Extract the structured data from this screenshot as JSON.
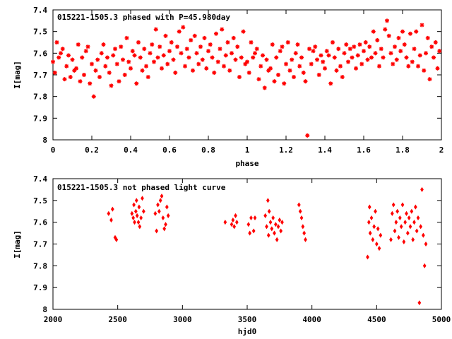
{
  "chart_data": [
    {
      "type": "scatter",
      "title": "015221-1505.3 phased with P=45.980day",
      "xlabel": "phase",
      "ylabel": "I[mag]",
      "xlim": [
        0,
        2
      ],
      "ylim": [
        7.4,
        8.0
      ],
      "y_inverted": true,
      "marker": "star",
      "color": "#ff0000",
      "grid": false,
      "xticks": [
        "0",
        "0.2",
        "0.4",
        "0.6",
        "0.8",
        "1",
        "1.2",
        "1.4",
        "1.6",
        "1.8",
        "2"
      ],
      "yticks": [
        "7.4",
        "7.5",
        "7.6",
        "7.7",
        "7.8",
        "7.9",
        "8"
      ],
      "points": [
        [
          0.0,
          7.64
        ],
        [
          0.01,
          7.69
        ],
        [
          0.02,
          7.55
        ],
        [
          0.03,
          7.62
        ],
        [
          0.04,
          7.6
        ],
        [
          0.05,
          7.58
        ],
        [
          0.06,
          7.72
        ],
        [
          0.07,
          7.66
        ],
        [
          0.08,
          7.61
        ],
        [
          0.09,
          7.71
        ],
        [
          0.1,
          7.63
        ],
        [
          0.11,
          7.68
        ],
        [
          0.12,
          7.67
        ],
        [
          0.13,
          7.56
        ],
        [
          0.14,
          7.73
        ],
        [
          0.15,
          7.62
        ],
        [
          0.16,
          7.7
        ],
        [
          0.17,
          7.59
        ],
        [
          0.18,
          7.57
        ],
        [
          0.19,
          7.74
        ],
        [
          0.2,
          7.65
        ],
        [
          0.21,
          7.8
        ],
        [
          0.22,
          7.68
        ],
        [
          0.23,
          7.63
        ],
        [
          0.24,
          7.71
        ],
        [
          0.25,
          7.6
        ],
        [
          0.26,
          7.56
        ],
        [
          0.27,
          7.66
        ],
        [
          0.28,
          7.62
        ],
        [
          0.29,
          7.69
        ],
        [
          0.3,
          7.75
        ],
        [
          0.31,
          7.61
        ],
        [
          0.32,
          7.58
        ],
        [
          0.33,
          7.65
        ],
        [
          0.34,
          7.73
        ],
        [
          0.35,
          7.57
        ],
        [
          0.36,
          7.63
        ],
        [
          0.37,
          7.7
        ],
        [
          0.38,
          7.53
        ],
        [
          0.39,
          7.64
        ],
        [
          0.4,
          7.67
        ],
        [
          0.41,
          7.59
        ],
        [
          0.42,
          7.61
        ],
        [
          0.43,
          7.74
        ],
        [
          0.44,
          7.55
        ],
        [
          0.45,
          7.62
        ],
        [
          0.46,
          7.68
        ],
        [
          0.47,
          7.58
        ],
        [
          0.48,
          7.66
        ],
        [
          0.49,
          7.71
        ],
        [
          0.5,
          7.6
        ],
        [
          0.51,
          7.56
        ],
        [
          0.52,
          7.64
        ],
        [
          0.53,
          7.49
        ],
        [
          0.54,
          7.62
        ],
        [
          0.55,
          7.57
        ],
        [
          0.56,
          7.67
        ],
        [
          0.57,
          7.61
        ],
        [
          0.58,
          7.52
        ],
        [
          0.59,
          7.65
        ],
        [
          0.6,
          7.59
        ],
        [
          0.61,
          7.55
        ],
        [
          0.62,
          7.63
        ],
        [
          0.63,
          7.69
        ],
        [
          0.64,
          7.57
        ],
        [
          0.65,
          7.5
        ],
        [
          0.66,
          7.6
        ],
        [
          0.67,
          7.48
        ],
        [
          0.68,
          7.66
        ],
        [
          0.69,
          7.58
        ],
        [
          0.7,
          7.62
        ],
        [
          0.71,
          7.54
        ],
        [
          0.72,
          7.68
        ],
        [
          0.73,
          7.52
        ],
        [
          0.74,
          7.6
        ],
        [
          0.75,
          7.65
        ],
        [
          0.76,
          7.57
        ],
        [
          0.77,
          7.63
        ],
        [
          0.78,
          7.53
        ],
        [
          0.79,
          7.67
        ],
        [
          0.8,
          7.59
        ],
        [
          0.81,
          7.56
        ],
        [
          0.82,
          7.62
        ],
        [
          0.83,
          7.69
        ],
        [
          0.84,
          7.51
        ],
        [
          0.85,
          7.64
        ],
        [
          0.86,
          7.58
        ],
        [
          0.87,
          7.49
        ],
        [
          0.88,
          7.66
        ],
        [
          0.89,
          7.61
        ],
        [
          0.9,
          7.55
        ],
        [
          0.91,
          7.68
        ],
        [
          0.92,
          7.6
        ],
        [
          0.93,
          7.53
        ],
        [
          0.94,
          7.63
        ],
        [
          0.95,
          7.57
        ],
        [
          0.96,
          7.71
        ],
        [
          0.97,
          7.62
        ],
        [
          0.98,
          7.5
        ],
        [
          0.99,
          7.65
        ],
        [
          1.0,
          7.64
        ],
        [
          1.01,
          7.69
        ],
        [
          1.02,
          7.55
        ],
        [
          1.03,
          7.62
        ],
        [
          1.04,
          7.6
        ],
        [
          1.05,
          7.58
        ],
        [
          1.06,
          7.72
        ],
        [
          1.07,
          7.66
        ],
        [
          1.08,
          7.61
        ],
        [
          1.09,
          7.76
        ],
        [
          1.1,
          7.63
        ],
        [
          1.11,
          7.68
        ],
        [
          1.12,
          7.67
        ],
        [
          1.13,
          7.56
        ],
        [
          1.14,
          7.73
        ],
        [
          1.15,
          7.62
        ],
        [
          1.16,
          7.7
        ],
        [
          1.17,
          7.59
        ],
        [
          1.18,
          7.57
        ],
        [
          1.19,
          7.74
        ],
        [
          1.2,
          7.65
        ],
        [
          1.21,
          7.55
        ],
        [
          1.22,
          7.68
        ],
        [
          1.23,
          7.63
        ],
        [
          1.24,
          7.71
        ],
        [
          1.25,
          7.6
        ],
        [
          1.26,
          7.56
        ],
        [
          1.27,
          7.66
        ],
        [
          1.28,
          7.62
        ],
        [
          1.29,
          7.69
        ],
        [
          1.3,
          7.73
        ],
        [
          1.31,
          7.98
        ],
        [
          1.32,
          7.58
        ],
        [
          1.33,
          7.65
        ],
        [
          1.34,
          7.59
        ],
        [
          1.35,
          7.57
        ],
        [
          1.36,
          7.63
        ],
        [
          1.37,
          7.7
        ],
        [
          1.38,
          7.61
        ],
        [
          1.39,
          7.64
        ],
        [
          1.4,
          7.67
        ],
        [
          1.41,
          7.59
        ],
        [
          1.42,
          7.61
        ],
        [
          1.43,
          7.74
        ],
        [
          1.44,
          7.55
        ],
        [
          1.45,
          7.62
        ],
        [
          1.46,
          7.68
        ],
        [
          1.47,
          7.58
        ],
        [
          1.48,
          7.66
        ],
        [
          1.49,
          7.71
        ],
        [
          1.5,
          7.6
        ],
        [
          1.51,
          7.56
        ],
        [
          1.52,
          7.64
        ],
        [
          1.53,
          7.58
        ],
        [
          1.54,
          7.62
        ],
        [
          1.55,
          7.57
        ],
        [
          1.56,
          7.67
        ],
        [
          1.57,
          7.61
        ],
        [
          1.58,
          7.56
        ],
        [
          1.59,
          7.65
        ],
        [
          1.6,
          7.59
        ],
        [
          1.61,
          7.55
        ],
        [
          1.62,
          7.63
        ],
        [
          1.63,
          7.57
        ],
        [
          1.64,
          7.62
        ],
        [
          1.65,
          7.5
        ],
        [
          1.66,
          7.6
        ],
        [
          1.67,
          7.54
        ],
        [
          1.68,
          7.66
        ],
        [
          1.69,
          7.58
        ],
        [
          1.7,
          7.62
        ],
        [
          1.71,
          7.49
        ],
        [
          1.72,
          7.45
        ],
        [
          1.73,
          7.52
        ],
        [
          1.74,
          7.6
        ],
        [
          1.75,
          7.65
        ],
        [
          1.76,
          7.57
        ],
        [
          1.77,
          7.63
        ],
        [
          1.78,
          7.53
        ],
        [
          1.79,
          7.59
        ],
        [
          1.8,
          7.5
        ],
        [
          1.81,
          7.56
        ],
        [
          1.82,
          7.62
        ],
        [
          1.83,
          7.66
        ],
        [
          1.84,
          7.51
        ],
        [
          1.85,
          7.64
        ],
        [
          1.86,
          7.58
        ],
        [
          1.87,
          7.5
        ],
        [
          1.88,
          7.66
        ],
        [
          1.89,
          7.61
        ],
        [
          1.9,
          7.47
        ],
        [
          1.91,
          7.68
        ],
        [
          1.92,
          7.6
        ],
        [
          1.93,
          7.53
        ],
        [
          1.94,
          7.72
        ],
        [
          1.95,
          7.57
        ],
        [
          1.96,
          7.62
        ],
        [
          1.97,
          7.55
        ],
        [
          1.98,
          7.67
        ],
        [
          1.99,
          7.59
        ]
      ]
    },
    {
      "type": "scatter",
      "title": "015221-1505.3 not phased light curve",
      "xlabel": "hjd0",
      "ylabel": "I[mag]",
      "xlim": [
        2000,
        5000
      ],
      "ylim": [
        7.4,
        8.0
      ],
      "y_inverted": true,
      "marker": "diamond",
      "color": "#ff0000",
      "grid": false,
      "xticks": [
        "2000",
        "2500",
        "3000",
        "3500",
        "4000",
        "4500",
        "5000"
      ],
      "yticks": [
        "7.4",
        "7.5",
        "7.6",
        "7.7",
        "7.8",
        "7.9",
        "8"
      ],
      "points": [
        [
          2430,
          7.56
        ],
        [
          2450,
          7.59
        ],
        [
          2460,
          7.54
        ],
        [
          2480,
          7.67
        ],
        [
          2490,
          7.68
        ],
        [
          2610,
          7.56
        ],
        [
          2620,
          7.58
        ],
        [
          2625,
          7.52
        ],
        [
          2630,
          7.6
        ],
        [
          2640,
          7.55
        ],
        [
          2645,
          7.5
        ],
        [
          2650,
          7.57
        ],
        [
          2660,
          7.6
        ],
        [
          2665,
          7.53
        ],
        [
          2670,
          7.62
        ],
        [
          2680,
          7.58
        ],
        [
          2690,
          7.49
        ],
        [
          2700,
          7.55
        ],
        [
          2790,
          7.56
        ],
        [
          2800,
          7.64
        ],
        [
          2810,
          7.52
        ],
        [
          2820,
          7.55
        ],
        [
          2830,
          7.5
        ],
        [
          2840,
          7.48
        ],
        [
          2850,
          7.58
        ],
        [
          2860,
          7.63
        ],
        [
          2870,
          7.61
        ],
        [
          2880,
          7.53
        ],
        [
          2890,
          7.57
        ],
        [
          3330,
          7.6
        ],
        [
          3380,
          7.61
        ],
        [
          3390,
          7.59
        ],
        [
          3400,
          7.62
        ],
        [
          3410,
          7.57
        ],
        [
          3420,
          7.6
        ],
        [
          3510,
          7.61
        ],
        [
          3520,
          7.65
        ],
        [
          3530,
          7.58
        ],
        [
          3550,
          7.64
        ],
        [
          3560,
          7.58
        ],
        [
          3640,
          7.57
        ],
        [
          3650,
          7.62
        ],
        [
          3660,
          7.5
        ],
        [
          3665,
          7.66
        ],
        [
          3670,
          7.55
        ],
        [
          3680,
          7.6
        ],
        [
          3690,
          7.63
        ],
        [
          3700,
          7.58
        ],
        [
          3710,
          7.65
        ],
        [
          3720,
          7.61
        ],
        [
          3730,
          7.68
        ],
        [
          3740,
          7.62
        ],
        [
          3750,
          7.59
        ],
        [
          3760,
          7.64
        ],
        [
          3770,
          7.6
        ],
        [
          3900,
          7.52
        ],
        [
          3910,
          7.55
        ],
        [
          3920,
          7.58
        ],
        [
          3930,
          7.62
        ],
        [
          3940,
          7.65
        ],
        [
          3950,
          7.68
        ],
        [
          4430,
          7.76
        ],
        [
          4440,
          7.6
        ],
        [
          4445,
          7.53
        ],
        [
          4450,
          7.65
        ],
        [
          4460,
          7.58
        ],
        [
          4470,
          7.68
        ],
        [
          4480,
          7.62
        ],
        [
          4490,
          7.55
        ],
        [
          4500,
          7.7
        ],
        [
          4510,
          7.63
        ],
        [
          4520,
          7.72
        ],
        [
          4530,
          7.66
        ],
        [
          4610,
          7.68
        ],
        [
          4620,
          7.56
        ],
        [
          4630,
          7.52
        ],
        [
          4640,
          7.64
        ],
        [
          4650,
          7.6
        ],
        [
          4660,
          7.55
        ],
        [
          4670,
          7.67
        ],
        [
          4680,
          7.58
        ],
        [
          4690,
          7.62
        ],
        [
          4700,
          7.52
        ],
        [
          4710,
          7.69
        ],
        [
          4720,
          7.6
        ],
        [
          4730,
          7.56
        ],
        [
          4740,
          7.65
        ],
        [
          4750,
          7.58
        ],
        [
          4760,
          7.62
        ],
        [
          4770,
          7.55
        ],
        [
          4780,
          7.68
        ],
        [
          4790,
          7.6
        ],
        [
          4800,
          7.53
        ],
        [
          4810,
          7.64
        ],
        [
          4820,
          7.58
        ],
        [
          4830,
          7.97
        ],
        [
          4840,
          7.62
        ],
        [
          4850,
          7.45
        ],
        [
          4860,
          7.66
        ],
        [
          4870,
          7.8
        ],
        [
          4880,
          7.7
        ]
      ]
    }
  ]
}
